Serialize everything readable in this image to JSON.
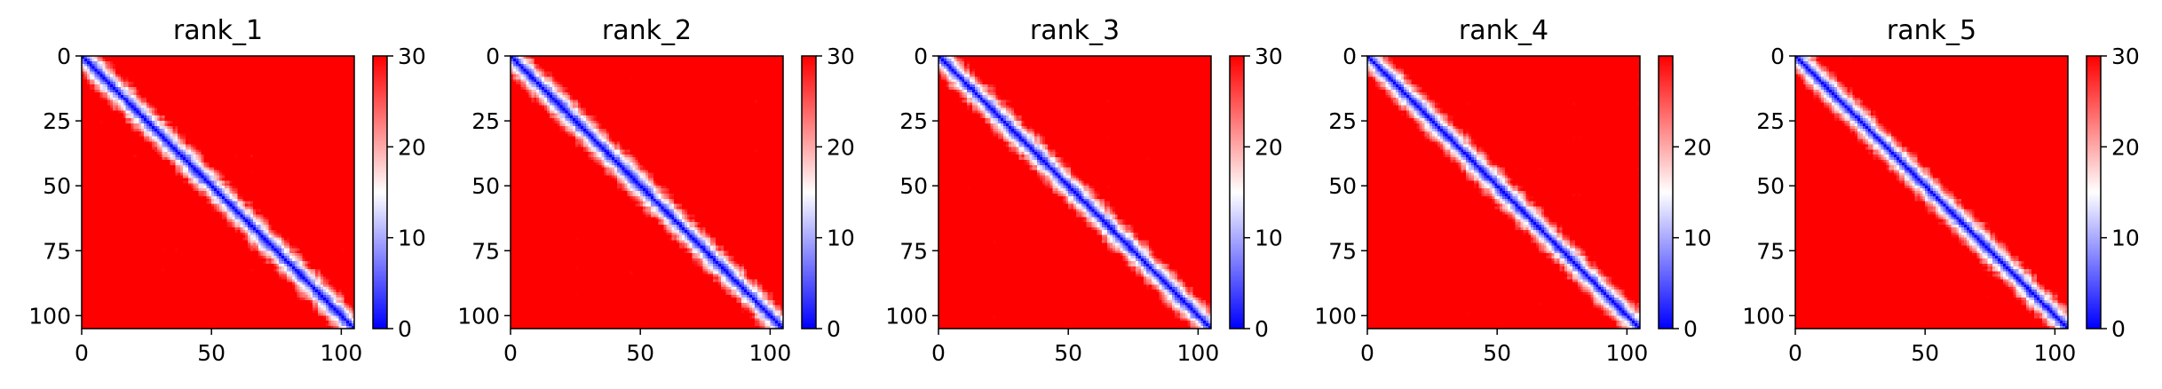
{
  "chart_data": [
    {
      "type": "heatmap",
      "title": "rank_1",
      "xlabel": "",
      "ylabel": "",
      "xlim": [
        0,
        105
      ],
      "ylim": [
        105,
        0
      ],
      "xticks": [
        0,
        50,
        100
      ],
      "yticks": [
        0,
        25,
        50,
        75,
        100
      ],
      "colorbar": {
        "range": [
          0,
          30
        ],
        "ticks": [
          0,
          10,
          20,
          30
        ],
        "colormap": "bwr"
      },
      "grid_size": 105,
      "pattern": "low values (blue, ~0) along main diagonal rising to high values (red, ~30) away from diagonal"
    },
    {
      "type": "heatmap",
      "title": "rank_2",
      "xlabel": "",
      "ylabel": "",
      "xlim": [
        0,
        105
      ],
      "ylim": [
        105,
        0
      ],
      "xticks": [
        0,
        50,
        100
      ],
      "yticks": [
        0,
        25,
        50,
        75,
        100
      ],
      "colorbar": {
        "range": [
          0,
          30
        ],
        "ticks": [
          0,
          10,
          20,
          30
        ],
        "colormap": "bwr"
      },
      "grid_size": 105,
      "pattern": "low values (blue, ~0) along main diagonal rising to high values (red, ~30) away from diagonal"
    },
    {
      "type": "heatmap",
      "title": "rank_3",
      "xlabel": "",
      "ylabel": "",
      "xlim": [
        0,
        105
      ],
      "ylim": [
        105,
        0
      ],
      "xticks": [
        0,
        50,
        100
      ],
      "yticks": [
        0,
        25,
        50,
        75,
        100
      ],
      "colorbar": {
        "range": [
          0,
          30
        ],
        "ticks": [
          0,
          10,
          20,
          30
        ],
        "colormap": "bwr"
      },
      "grid_size": 105,
      "pattern": "low values (blue, ~0) along main diagonal rising to high values (red, ~30) away from diagonal"
    },
    {
      "type": "heatmap",
      "title": "rank_4",
      "xlabel": "",
      "ylabel": "",
      "xlim": [
        0,
        105
      ],
      "ylim": [
        105,
        0
      ],
      "xticks": [
        0,
        50,
        100
      ],
      "yticks": [
        0,
        25,
        50,
        75,
        100
      ],
      "colorbar": {
        "range": [
          0,
          30
        ],
        "ticks": [
          0,
          10,
          20
        ],
        "colormap": "bwr"
      },
      "grid_size": 105,
      "pattern": "low values (blue, ~0) along main diagonal rising to high values (red, ~30) away from diagonal"
    },
    {
      "type": "heatmap",
      "title": "rank_5",
      "xlabel": "",
      "ylabel": "",
      "xlim": [
        0,
        105
      ],
      "ylim": [
        105,
        0
      ],
      "xticks": [
        0,
        50,
        100
      ],
      "yticks": [
        0,
        25,
        50,
        75,
        100
      ],
      "colorbar": {
        "range": [
          0,
          30
        ],
        "ticks": [
          0,
          10,
          20,
          30
        ],
        "colormap": "bwr"
      },
      "grid_size": 105,
      "pattern": "low values (blue, ~0) along main diagonal rising to high values (red, ~30) away from diagonal"
    }
  ],
  "colors": {
    "low": "#0000ff",
    "mid": "#ffffff",
    "high": "#ff0000"
  }
}
